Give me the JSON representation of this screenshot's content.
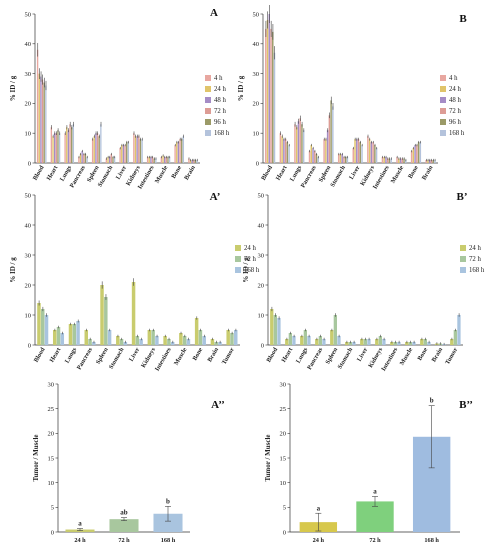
{
  "chart_data": [
    {
      "id": "A",
      "panel_label": "A",
      "type": "bar",
      "ylabel": "% ID / g",
      "ylim": [
        0,
        50
      ],
      "yticks": [
        0,
        10,
        20,
        30,
        40,
        50
      ],
      "categories": [
        "Blood",
        "Heart",
        "Lungs",
        "Pancreas",
        "Spleen",
        "Stomach",
        "Liver",
        "Kidneys",
        "Intestines",
        "Muscle",
        "Bone",
        "Brain"
      ],
      "legend_position": "right",
      "series": [
        {
          "name": "4 h",
          "color": "#e8a7a0",
          "values": [
            38,
            12,
            10,
            2,
            8,
            1.5,
            5,
            10,
            2,
            2,
            6,
            1.5
          ]
        },
        {
          "name": "24 h",
          "color": "#e0c46a",
          "values": [
            30,
            9,
            12,
            3,
            9,
            2,
            6,
            9,
            2,
            2.5,
            7,
            1
          ]
        },
        {
          "name": "48 h",
          "color": "#a58cc6",
          "values": [
            29,
            10,
            11,
            4,
            10,
            2,
            6,
            9,
            2,
            2,
            7,
            1
          ]
        },
        {
          "name": "72 h",
          "color": "#dd9c95",
          "values": [
            28,
            10,
            13,
            3,
            10,
            3,
            6,
            9,
            2,
            2,
            8,
            1
          ]
        },
        {
          "name": "96 h",
          "color": "#9b9a67",
          "values": [
            27,
            11,
            12,
            3,
            9,
            2,
            7,
            8,
            1.5,
            2,
            8,
            1
          ]
        },
        {
          "name": "168 h",
          "color": "#b4c3dc",
          "values": [
            26,
            10,
            13,
            2,
            13,
            2,
            7,
            8,
            1.5,
            2,
            9,
            1
          ]
        }
      ]
    },
    {
      "id": "B",
      "panel_label": "B",
      "type": "bar",
      "ylabel": "% ID / g",
      "ylim": [
        0,
        50
      ],
      "yticks": [
        0,
        10,
        20,
        30,
        40,
        50
      ],
      "categories": [
        "Blood",
        "Heart",
        "Lungs",
        "Pancreas",
        "Spleen",
        "Stomach",
        "Liver",
        "Kidneys",
        "Intestines",
        "Muscle",
        "Bone",
        "Brain"
      ],
      "legend_position": "right",
      "series": [
        {
          "name": "4 h",
          "color": "#e8a7a0",
          "values": [
            45,
            10,
            13,
            4,
            8,
            3,
            5,
            9,
            2,
            2,
            4,
            1
          ]
        },
        {
          "name": "24 h",
          "color": "#e0c46a",
          "values": [
            48,
            9,
            12,
            6,
            8,
            3,
            8,
            8,
            2,
            1.5,
            5,
            1
          ]
        },
        {
          "name": "48 h",
          "color": "#a58cc6",
          "values": [
            50,
            8,
            14,
            5,
            11,
            3,
            8,
            7,
            2,
            1.5,
            6,
            1
          ]
        },
        {
          "name": "72 h",
          "color": "#dd9c95",
          "values": [
            45,
            8,
            15,
            4,
            16,
            2,
            8,
            7,
            1.5,
            1.5,
            6,
            1
          ]
        },
        {
          "name": "96 h",
          "color": "#9b9a67",
          "values": [
            44,
            7,
            13,
            3,
            21,
            2,
            7,
            6,
            1.5,
            1.5,
            7,
            1
          ]
        },
        {
          "name": "168 h",
          "color": "#b4c3dc",
          "values": [
            37,
            6,
            11,
            2,
            19,
            2,
            6,
            5,
            1.5,
            1,
            7,
            1
          ]
        }
      ]
    },
    {
      "id": "A2",
      "panel_label": "A’",
      "type": "bar",
      "ylabel": "% ID / g",
      "ylim": [
        0,
        50
      ],
      "yticks": [
        0,
        10,
        20,
        30,
        40,
        50
      ],
      "categories": [
        "Blood",
        "Heart",
        "Lungs",
        "Pancreas",
        "Spleen",
        "Stomach",
        "Liver",
        "Kidneys",
        "Intestines",
        "Muscle",
        "Bone",
        "Brain",
        "Tumor"
      ],
      "legend_position": "right",
      "series": [
        {
          "name": "24 h",
          "color": "#c9cc6e",
          "values": [
            14,
            5,
            7,
            5,
            20,
            3,
            21,
            5,
            3,
            4,
            9,
            2,
            5
          ]
        },
        {
          "name": "72 h",
          "color": "#a8c79e",
          "values": [
            12,
            6,
            7,
            2,
            16,
            2,
            3,
            5,
            2,
            3,
            5,
            1,
            4
          ]
        },
        {
          "name": "168 h",
          "color": "#a9c4df",
          "values": [
            10,
            4,
            8,
            1,
            5,
            1,
            2,
            3,
            1,
            2,
            3,
            1,
            5
          ]
        }
      ]
    },
    {
      "id": "B2",
      "panel_label": "B’",
      "type": "bar",
      "ylabel": "% ID / g",
      "ylim": [
        0,
        50
      ],
      "yticks": [
        0,
        10,
        20,
        30,
        40,
        50
      ],
      "categories": [
        "Blood",
        "Heart",
        "Lungs",
        "Pancreas",
        "Spleen",
        "Stomach",
        "Liver",
        "Kidneys",
        "Intestines",
        "Muscle",
        "Bone",
        "Brain",
        "Tumor"
      ],
      "legend_position": "right",
      "series": [
        {
          "name": "24 h",
          "color": "#c9cc6e",
          "values": [
            12,
            2,
            3,
            2,
            5,
            1,
            2,
            2,
            1,
            1,
            2,
            0.5,
            2
          ]
        },
        {
          "name": "72 h",
          "color": "#a8c79e",
          "values": [
            10,
            4,
            5,
            3,
            10,
            1,
            2,
            3,
            1,
            1,
            2,
            0.5,
            5
          ]
        },
        {
          "name": "168 h",
          "color": "#a9c4df",
          "values": [
            9,
            3,
            3,
            2,
            3,
            1,
            2,
            2,
            1,
            1,
            1,
            0.3,
            10
          ]
        }
      ]
    },
    {
      "id": "A3",
      "panel_label": "A’’",
      "type": "bar",
      "ylabel": "Tumor / Muscle",
      "ylim": [
        0,
        30
      ],
      "yticks": [
        0,
        5,
        10,
        15,
        20,
        25,
        30
      ],
      "categories": [
        "24 h",
        "72 h",
        "168 h"
      ],
      "values": [
        0.5,
        2.6,
        3.7
      ],
      "errors": [
        0.2,
        0.3,
        1.5
      ],
      "letters": [
        "a",
        "ab",
        "b"
      ],
      "colors": [
        "#c9cc6e",
        "#a8c79e",
        "#a9c4df"
      ]
    },
    {
      "id": "B3",
      "panel_label": "B’’",
      "type": "bar",
      "ylabel": "Tumor / Muscle",
      "ylim": [
        0,
        30
      ],
      "yticks": [
        0,
        5,
        10,
        15,
        20,
        25,
        30
      ],
      "categories": [
        "24 h",
        "72 h",
        "168 h"
      ],
      "values": [
        2.0,
        6.2,
        19.3
      ],
      "errors": [
        1.8,
        1.0,
        6.3
      ],
      "letters": [
        "a",
        "a",
        "b"
      ],
      "colors": [
        "#d7c84c",
        "#7fd07d",
        "#9fbce0"
      ]
    }
  ]
}
